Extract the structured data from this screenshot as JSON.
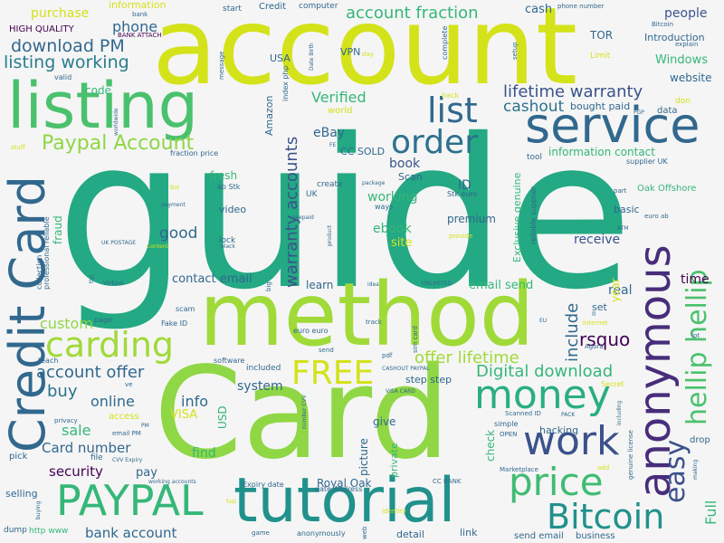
{
  "palette": {
    "background": "#f5f5f5",
    "yellow": "#d4e21a",
    "lime": "#8fd744",
    "green": "#35b779",
    "teal": "#21918c",
    "cyan": "#29af7f",
    "blue": "#31688e",
    "darkblue": "#3b528b",
    "indigo": "#443983",
    "purple": "#440154",
    "plum": "#472d7b"
  },
  "words": [
    "guide",
    "account",
    "Card",
    "method",
    "listing",
    "tutorial",
    "service",
    "Credit Card",
    "anonymous",
    "money",
    "PAYPAL",
    "price",
    "work",
    "Bitcoin",
    "hellip hellip",
    "carding",
    "list",
    "order",
    "FREE",
    "easy",
    "Paypal Account",
    "account fraction",
    "download PM",
    "listing working",
    "lifetime warranty",
    "Digital download",
    "warranty accounts",
    "account offer",
    "offer lifetime",
    "rsquo",
    "cashout",
    "Verified",
    "custom",
    "include",
    "Card number",
    "security",
    "bank account",
    "contact email",
    "email send",
    "online",
    "buy",
    "sale",
    "phone",
    "Windows",
    "people",
    "cash",
    "purchase",
    "Introduction",
    "website",
    "information",
    "HIGH QUALITY",
    "VPN",
    "USA",
    "TOR",
    "book",
    "ebook",
    "working",
    "receive",
    "good",
    "premium",
    "time",
    "real",
    "Full",
    "info",
    "system",
    "VISA",
    "USD",
    "find",
    "pay",
    "selling",
    "information contact",
    "eBay",
    "Amazon",
    "code",
    "fresh",
    "video",
    "fraud",
    "learn",
    "CC SOLD",
    "ID",
    "Scan",
    "site",
    "basic",
    "Oak Offshore",
    "set",
    "year",
    "Royal Oak",
    "Exclusive genuine",
    "picture",
    "check",
    "step step",
    "give",
    "hacking",
    "private",
    "detail",
    "link",
    "send email",
    "business",
    "bought paid",
    "data",
    "drop",
    "Limit",
    "Credit",
    "start",
    "computer",
    "complete",
    "phone number",
    "explain",
    "BANK ATTACH",
    "access",
    "lock",
    "create",
    "world",
    "bank",
    "Bitcoin",
    "message",
    "valid",
    "index php",
    "Date Birth",
    "tool",
    "supplier UK",
    "reliable supplier",
    "Stk euro",
    "ab Stk",
    "UK",
    "ways",
    "tip",
    "UK POSTAGE",
    "Virtual",
    "collection",
    "professional reliable",
    "page",
    "Fake ID",
    "scam",
    "euro euro",
    "teach",
    "included",
    "software",
    "email PM",
    "pick",
    "file",
    "CVV Expiry",
    "working accounts",
    "Expiry date",
    "date Address",
    "CC BANK",
    "Marketplace",
    "dump",
    "http www",
    "game",
    "anonymously",
    "web",
    "Identity",
    "sim card",
    "CASHOUT PAYPAL",
    "VISA CARD",
    "Scanned ID",
    "simple",
    "OPEN",
    "Agora",
    "internet",
    "Secret",
    "PACK",
    "add",
    "genuine license",
    "making",
    "lot",
    "EU",
    "II",
    "stuff",
    "hack",
    "don",
    "setup",
    "day",
    "Bot",
    "payment",
    "Content",
    "prepaid",
    "black",
    "product",
    "provide",
    "ATM",
    "euro ab",
    "part",
    "package",
    "UNLIMITED",
    "idea",
    "big",
    "track",
    "pdf",
    "send",
    "ve",
    "privacy",
    "number CVV",
    "including",
    "buying",
    "fast",
    "worldwide",
    "PGP",
    "fraction price",
    "FE",
    "PM"
  ]
}
